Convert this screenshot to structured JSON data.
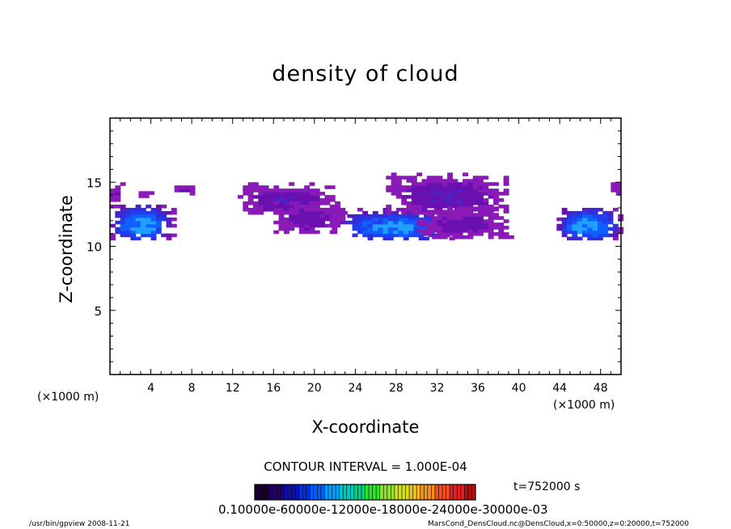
{
  "chart_data": {
    "type": "heatmap",
    "title": "density of cloud",
    "xlabel": "X-coordinate",
    "ylabel": "Z-coordinate",
    "x_unit": "(×1000 m)",
    "y_unit": "(×1000 m)",
    "xlim": [
      0,
      50
    ],
    "ylim": [
      0,
      20
    ],
    "x_ticks": [
      "4",
      "8",
      "12",
      "16",
      "20",
      "24",
      "28",
      "32",
      "36",
      "40",
      "44",
      "48"
    ],
    "y_ticks": [
      "5",
      "10",
      "15"
    ],
    "grid": false,
    "contour_interval": "CONTOUR INTERVAL = 1.000E-04",
    "time_label": "t=752000 s",
    "colorbar_labels": "0.10000e-60000e-12000e-18000e-24000e-30000e-03",
    "colorbar_colors": [
      "#1a0030",
      "#22006a",
      "#1010b0",
      "#0030e0",
      "#0060ff",
      "#00a0ff",
      "#00c8c0",
      "#00d080",
      "#30e030",
      "#90e030",
      "#d0e020",
      "#f0c020",
      "#f09020",
      "#f05020",
      "#e02020",
      "#b01010"
    ],
    "cloud_regions": [
      {
        "x": [
          0.0,
          6.2
        ],
        "z": [
          10.5,
          13.2
        ],
        "peak": 0.55
      },
      {
        "x": [
          21.7,
          34.0
        ],
        "z": [
          10.5,
          12.8
        ],
        "peak": 0.5
      },
      {
        "x": [
          43.7,
          50.0
        ],
        "z": [
          10.5,
          13.0
        ],
        "peak": 0.55
      },
      {
        "x": [
          12.5,
          22.0
        ],
        "z": [
          12.5,
          14.8
        ],
        "peak": 0.12
      },
      {
        "x": [
          16.0,
          23.0
        ],
        "z": [
          11.0,
          13.5
        ],
        "peak": 0.1
      },
      {
        "x": [
          27.0,
          39.0
        ],
        "z": [
          12.5,
          15.6
        ],
        "peak": 0.13
      },
      {
        "x": [
          30.0,
          39.2
        ],
        "z": [
          10.6,
          13.0
        ],
        "peak": 0.1
      },
      {
        "x": [
          0.0,
          1.2
        ],
        "z": [
          13.5,
          15.0
        ],
        "peak": 0.08
      },
      {
        "x": [
          2.8,
          4.2
        ],
        "z": [
          13.8,
          14.3
        ],
        "peak": 0.08
      },
      {
        "x": [
          6.3,
          8.5
        ],
        "z": [
          14.0,
          14.8
        ],
        "peak": 0.08
      },
      {
        "x": [
          49.0,
          50.0
        ],
        "z": [
          14.0,
          15.0
        ],
        "peak": 0.08
      }
    ]
  },
  "footer": {
    "left": "/usr/bin/gpview   2008-11-21",
    "right": "MarsCond_DensCloud.nc@DensCloud,x=0:50000,z=0:20000,t=752000"
  }
}
